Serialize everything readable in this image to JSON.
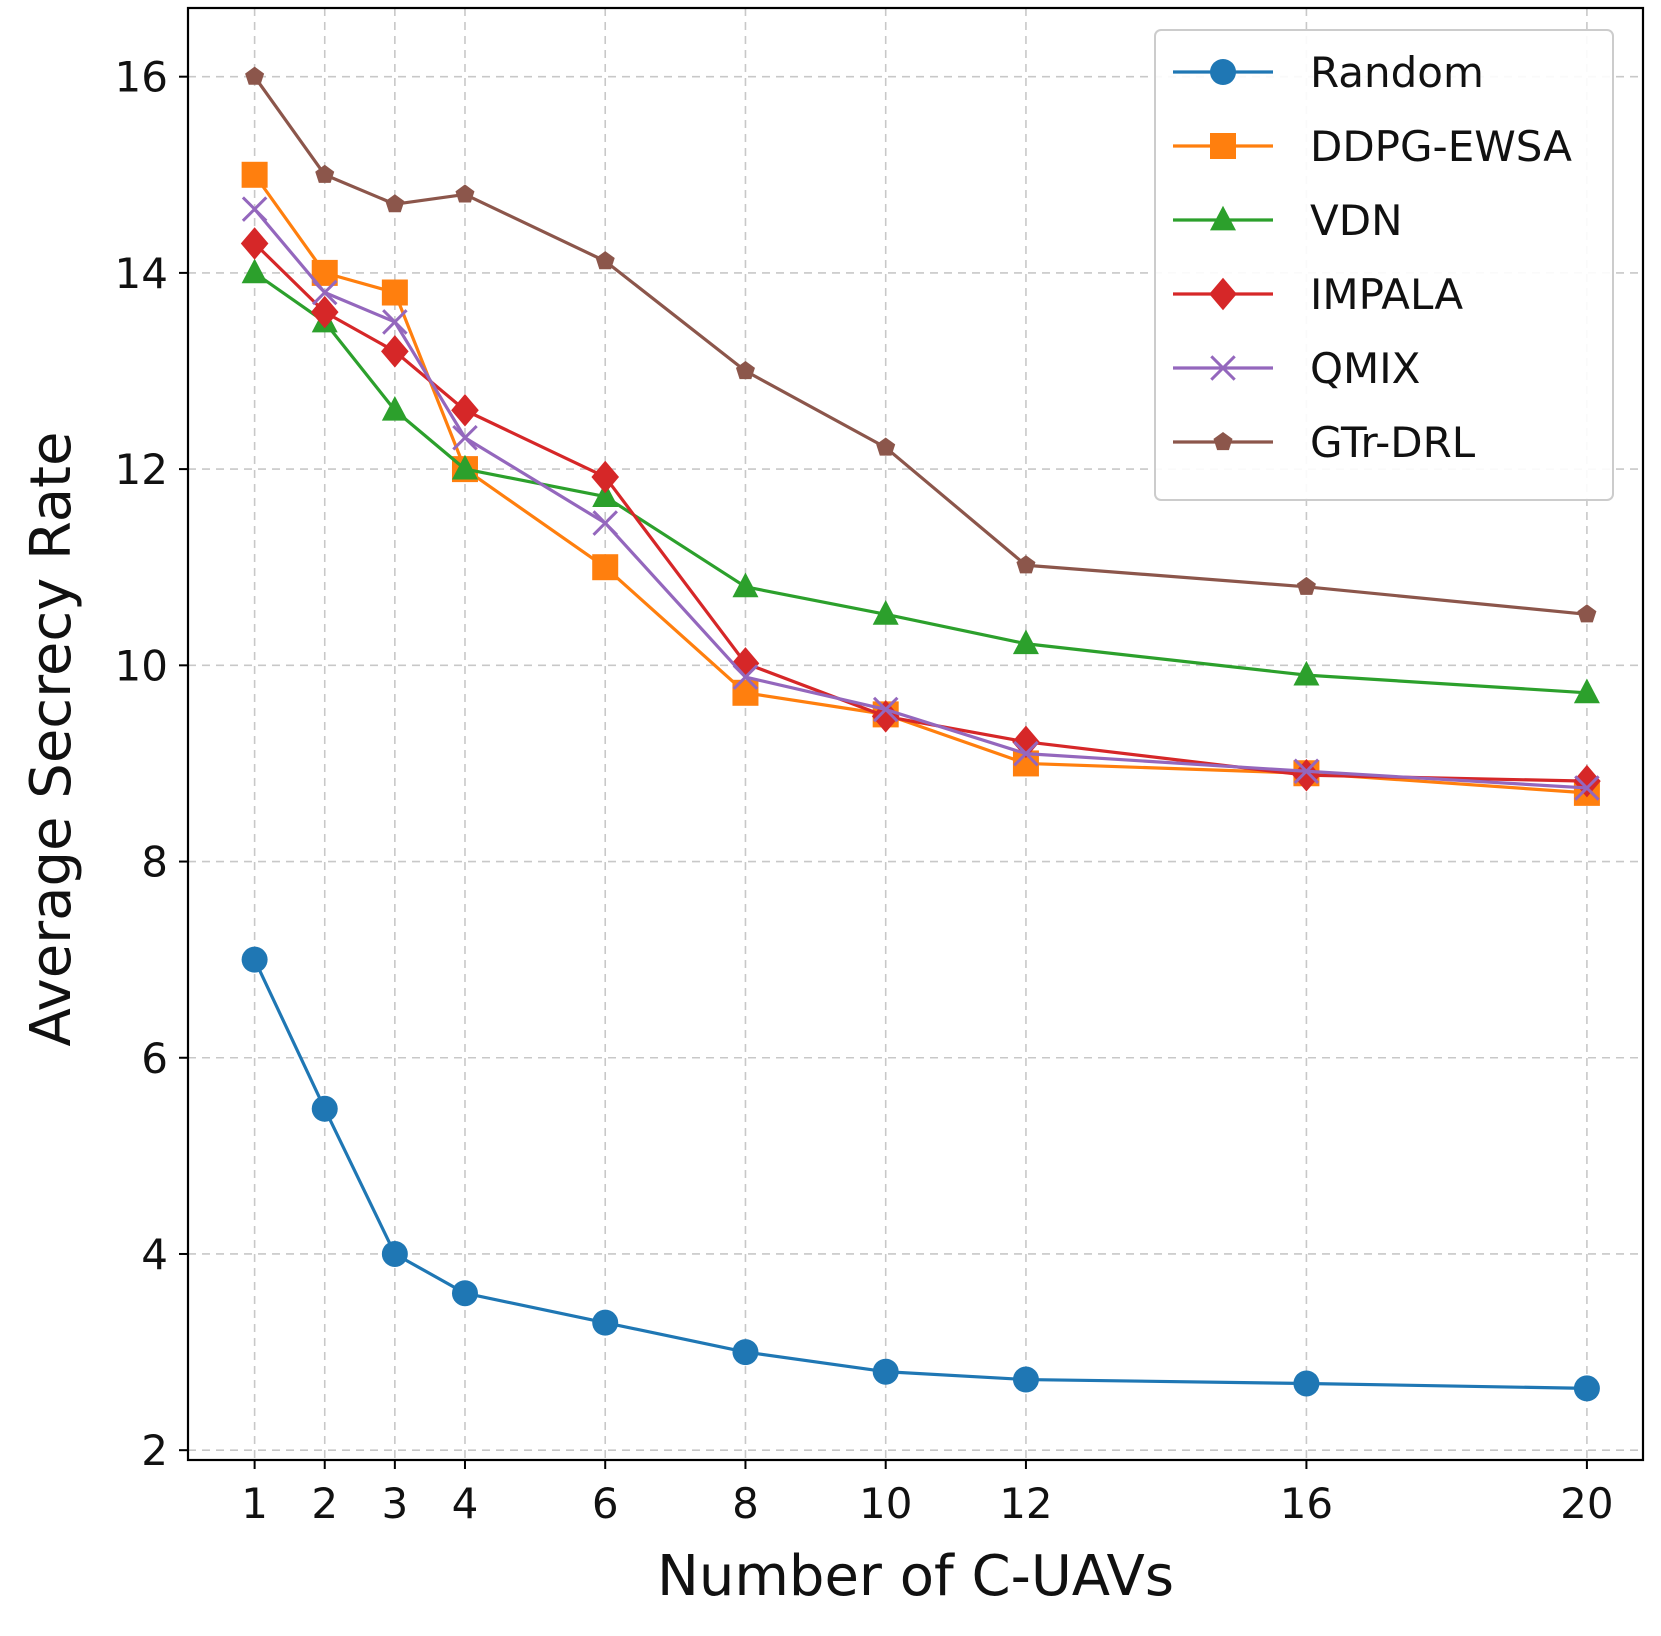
{
  "chart_data": {
    "type": "line",
    "title": "",
    "xlabel": "Number of C-UAVs",
    "ylabel": "Average Secrecy Rate",
    "x": [
      1,
      2,
      3,
      4,
      6,
      8,
      10,
      12,
      16,
      20
    ],
    "xticks": [
      "1",
      "2",
      "3",
      "4",
      "6",
      "8",
      "10",
      "12",
      "16",
      "20"
    ],
    "yticks": [
      "2",
      "4",
      "6",
      "8",
      "10",
      "12",
      "14",
      "16"
    ],
    "ylim": [
      1.9,
      16.7
    ],
    "grid": true,
    "legend_position": "top-right",
    "series": [
      {
        "name": "Random",
        "color": "#1f77b4",
        "marker": "circle",
        "values": [
          7.0,
          5.48,
          4.0,
          3.6,
          3.3,
          3.0,
          2.8,
          2.72,
          2.68,
          2.63
        ]
      },
      {
        "name": "DDPG-EWSA",
        "color": "#ff7f0e",
        "marker": "square",
        "values": [
          15.0,
          14.0,
          13.8,
          12.0,
          11.0,
          9.72,
          9.5,
          9.0,
          8.9,
          8.7
        ]
      },
      {
        "name": "VDN",
        "color": "#2ca02c",
        "marker": "triangle",
        "values": [
          14.0,
          13.5,
          12.6,
          12.0,
          11.72,
          10.8,
          10.52,
          10.22,
          9.9,
          9.72
        ]
      },
      {
        "name": "IMPALA",
        "color": "#d62728",
        "marker": "diamond",
        "values": [
          14.3,
          13.6,
          13.2,
          12.6,
          11.92,
          10.02,
          9.48,
          9.22,
          8.88,
          8.82
        ]
      },
      {
        "name": "QMIX",
        "color": "#9467bd",
        "marker": "x",
        "values": [
          14.65,
          13.8,
          13.5,
          12.32,
          11.45,
          9.88,
          9.55,
          9.1,
          8.92,
          8.75
        ]
      },
      {
        "name": "GTr-DRL",
        "color": "#8c564b",
        "marker": "pentagon",
        "values": [
          16.0,
          15.0,
          14.7,
          14.8,
          14.12,
          13.0,
          12.22,
          11.02,
          10.8,
          10.52
        ]
      }
    ]
  }
}
